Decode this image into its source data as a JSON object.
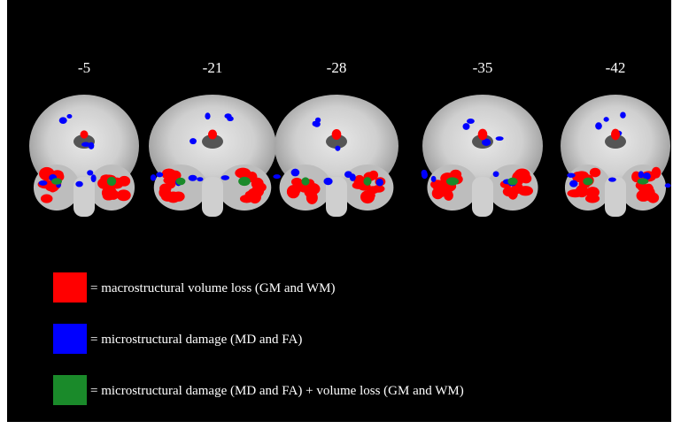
{
  "slices": [
    {
      "label": "-5"
    },
    {
      "label": "-21"
    },
    {
      "label": "-28"
    },
    {
      "label": "-35"
    },
    {
      "label": "-42"
    }
  ],
  "legend": [
    {
      "color": "#ff0000",
      "label": "= macrostructural volume loss (GM and WM)"
    },
    {
      "color": "#0000ff",
      "label": "= microstructural damage (MD and FA)"
    },
    {
      "color": "#1a8a2a",
      "label": "= microstructural damage (MD and FA) +  volume loss (GM and WM)"
    }
  ]
}
